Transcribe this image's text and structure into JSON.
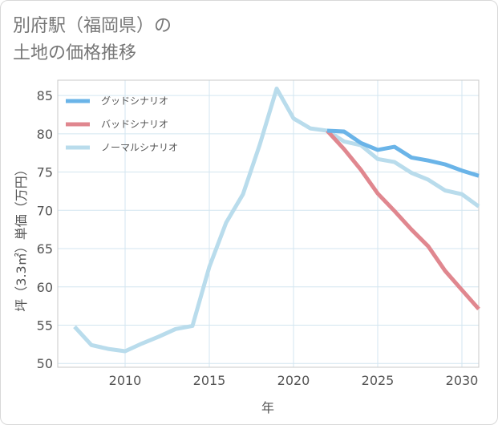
{
  "title_line1": "別府駅（福岡県）の",
  "title_line2": "土地の価格推移",
  "chart_data": {
    "type": "line",
    "title": "別府駅（福岡県）の土地の価格推移",
    "xlabel": "年",
    "ylabel": "坪（3.3㎡）単価（万円）",
    "xlim": [
      2006,
      2031
    ],
    "ylim": [
      49.5,
      87
    ],
    "xticks": [
      2010,
      2015,
      2020,
      2025,
      2030
    ],
    "yticks": [
      50,
      55,
      60,
      65,
      70,
      75,
      80,
      85
    ],
    "grid": true,
    "legend_position": "top-left",
    "series": [
      {
        "name": "グッドシナリオ",
        "color": "#6ab4e8",
        "x": [
          2022,
          2023,
          2024,
          2025,
          2026,
          2027,
          2028,
          2029,
          2030,
          2031
        ],
        "values": [
          80.4,
          80.3,
          78.8,
          77.9,
          78.3,
          76.9,
          76.5,
          76.0,
          75.2,
          74.5
        ]
      },
      {
        "name": "バッドシナリオ",
        "color": "#e0878f",
        "x": [
          2022,
          2023,
          2024,
          2025,
          2026,
          2027,
          2028,
          2029,
          2030,
          2031
        ],
        "values": [
          80.4,
          78.0,
          75.3,
          72.2,
          69.9,
          67.5,
          65.3,
          62.1,
          59.6,
          57.1
        ]
      },
      {
        "name": "ノーマルシナリオ",
        "color": "#b9dcec",
        "x": [
          2007,
          2008,
          2009,
          2010,
          2011,
          2012,
          2013,
          2014,
          2015,
          2016,
          2017,
          2018,
          2019,
          2020,
          2021,
          2022,
          2023,
          2024,
          2025,
          2026,
          2027,
          2028,
          2029,
          2030,
          2031
        ],
        "values": [
          54.8,
          52.4,
          51.9,
          51.6,
          52.6,
          53.5,
          54.5,
          54.9,
          62.6,
          68.4,
          72.1,
          78.6,
          85.9,
          82.0,
          80.7,
          80.4,
          79.0,
          78.5,
          76.7,
          76.3,
          74.9,
          74.0,
          72.6,
          72.1,
          70.5
        ]
      }
    ]
  }
}
